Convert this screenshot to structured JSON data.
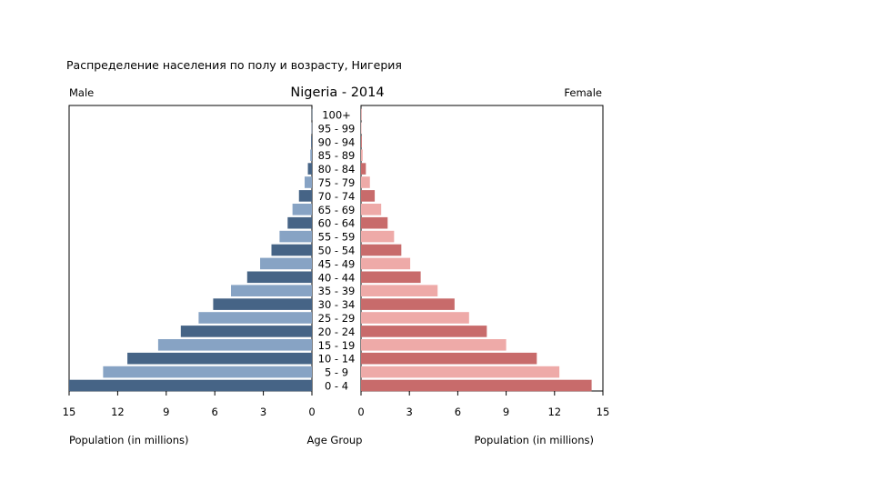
{
  "slide": {
    "caption": "Распределение населения по полу и возрасту, Нигерия"
  },
  "chart_data": {
    "type": "bar",
    "orientation": "horizontal-pyramid",
    "title": "Nigeria - 2014",
    "left_label": "Male",
    "right_label": "Female",
    "xlabel_left": "Population (in millions)",
    "xlabel_center": "Age Group",
    "xlabel_right": "Population (in millions)",
    "xlim": [
      0,
      15
    ],
    "left_ticks": [
      "15",
      "12",
      "9",
      "6",
      "3",
      "0"
    ],
    "right_ticks": [
      "0",
      "3",
      "6",
      "9",
      "12",
      "15"
    ],
    "categories": [
      "0 - 4",
      "5 - 9",
      "10 - 14",
      "15 - 19",
      "20 - 24",
      "25 - 29",
      "30 - 34",
      "35 - 39",
      "40 - 44",
      "45 - 49",
      "50 - 54",
      "55 - 59",
      "60 - 64",
      "65 - 69",
      "70 - 74",
      "75 - 79",
      "80 - 84",
      "85 - 89",
      "90 - 94",
      "95 - 99",
      "100+"
    ],
    "series": [
      {
        "name": "Male",
        "values": [
          15.0,
          12.9,
          11.4,
          9.5,
          8.1,
          7.0,
          6.1,
          5.0,
          4.0,
          3.2,
          2.5,
          2.0,
          1.5,
          1.2,
          0.8,
          0.45,
          0.25,
          0.1,
          0.05,
          0.02,
          0.01
        ]
      },
      {
        "name": "Female",
        "values": [
          14.3,
          12.3,
          10.9,
          9.0,
          7.8,
          6.7,
          5.8,
          4.75,
          3.7,
          3.05,
          2.5,
          2.05,
          1.65,
          1.25,
          0.85,
          0.55,
          0.3,
          0.1,
          0.05,
          0.02,
          0.01
        ]
      }
    ],
    "colors": {
      "male_dark": "#466486",
      "male_light": "#87a3c4",
      "female_dark": "#c86b6b",
      "female_light": "#eeaaa8"
    }
  }
}
